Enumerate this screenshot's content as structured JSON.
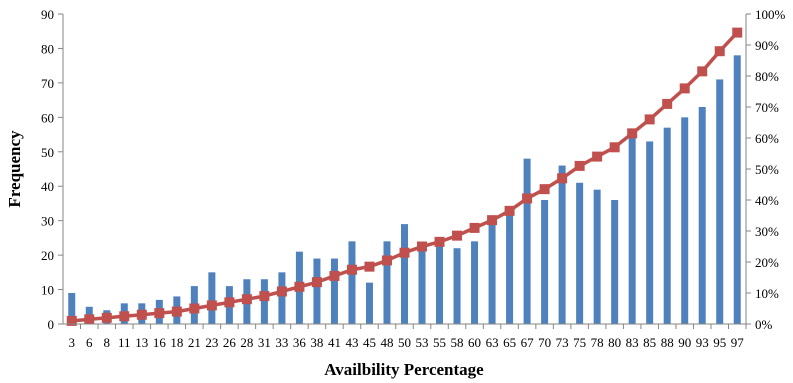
{
  "chart_data": {
    "type": "bar",
    "title": "",
    "xlabel": "Availbility Percentage",
    "ylabel": "Frequency",
    "ylim": [
      0,
      90
    ],
    "yticks": [
      0,
      10,
      20,
      30,
      40,
      50,
      60,
      70,
      80,
      90
    ],
    "y2lim": [
      0,
      100
    ],
    "y2ticks": [
      "0%",
      "10%",
      "20%",
      "30%",
      "40%",
      "50%",
      "60%",
      "70%",
      "80%",
      "90%",
      "100%"
    ],
    "grid": false,
    "legend": "none",
    "categories": [
      "3",
      "6",
      "8",
      "11",
      "13",
      "16",
      "18",
      "21",
      "23",
      "26",
      "28",
      "31",
      "33",
      "36",
      "38",
      "41",
      "43",
      "45",
      "48",
      "50",
      "53",
      "55",
      "58",
      "60",
      "63",
      "65",
      "67",
      "70",
      "73",
      "75",
      "78",
      "80",
      "83",
      "85",
      "88",
      "90",
      "93",
      "95",
      "97"
    ],
    "series": [
      {
        "kind": "bar",
        "axis": "left",
        "color": "#4F81BD",
        "values": [
          9,
          5,
          4,
          6,
          6,
          7,
          8,
          11,
          15,
          11,
          13,
          13,
          15,
          21,
          19,
          19,
          24,
          12,
          24,
          29,
          22,
          24,
          22,
          24,
          30,
          32,
          48,
          36,
          46,
          41,
          39,
          36,
          56,
          53,
          57,
          60,
          63,
          71,
          78
        ]
      },
      {
        "kind": "line",
        "axis": "right",
        "color": "#C0504D",
        "marker": "square",
        "values": [
          1,
          1.5,
          2,
          2.5,
          3,
          3.5,
          4,
          5,
          6,
          7,
          8,
          9,
          10.5,
          12,
          13.5,
          15.5,
          17.5,
          18.5,
          20.5,
          23,
          25,
          26.5,
          28.5,
          31,
          33.5,
          36.5,
          40.5,
          43.5,
          47,
          51,
          54,
          57,
          61.5,
          66,
          71,
          76,
          81.5,
          88,
          94
        ]
      }
    ]
  }
}
